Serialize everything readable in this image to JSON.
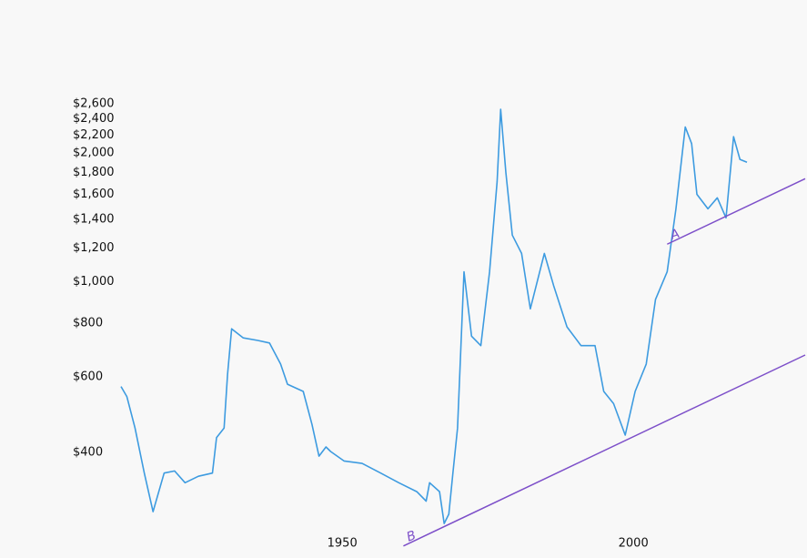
{
  "chart_data": {
    "type": "line",
    "log_scale_y": true,
    "grid": false,
    "x": [
      1912,
      1913,
      1914.4,
      1916,
      1917.5,
      1919.4,
      1921.2,
      1923,
      1925.3,
      1927.7,
      1928.4,
      1929.7,
      1930.3,
      1931,
      1933,
      1935.5,
      1937.5,
      1939.4,
      1940.6,
      1943.3,
      1944.8,
      1946,
      1947.2,
      1948,
      1950.3,
      1953.4,
      1956.6,
      1959.7,
      1962.8,
      1964.4,
      1965,
      1966.7,
      1967.5,
      1968.3,
      1969,
      1969.8,
      1970.9,
      1972.2,
      1973.8,
      1975.3,
      1976.6,
      1977.2,
      1978.1,
      1979.2,
      1980.8,
      1982.3,
      1984.7,
      1986.3,
      1988.6,
      1991,
      1993.4,
      1994.9,
      1996.6,
      1998.6,
      2000.3,
      2002.2,
      2003.8,
      2005.8,
      2007.3,
      2008.9,
      2010,
      2010.9,
      2012.8,
      2014.4,
      2015.9,
      2017.2,
      2018.3,
      2019.5
    ],
    "series": [
      {
        "color": "#3d9be0",
        "values": [
          570,
          540,
          456,
          358,
          291,
          358,
          362,
          340,
          352,
          358,
          433,
          456,
          608,
          777,
          740,
          730,
          720,
          643,
          577,
          555,
          465,
          392,
          412,
          402,
          382,
          377,
          358,
          340,
          324,
          308,
          340,
          324,
          273,
          287,
          358,
          456,
          1055,
          747,
          710,
          1055,
          1713,
          2525,
          1800,
          1285,
          1165,
          865,
          1165,
          980,
          785,
          710,
          710,
          555,
          520,
          439,
          555,
          643,
          910,
          1055,
          1477,
          2297,
          2100,
          1600,
          1480,
          1570,
          1410,
          2180,
          1930,
          1900
        ]
      }
    ],
    "trendlines": [
      {
        "label": "A",
        "color": "#7d4fc9",
        "x": [
          2005.8,
          2029.5
        ],
        "values": [
          1224,
          1740
        ]
      },
      {
        "label": "B",
        "color": "#7d4fc9",
        "x": [
          1960.5,
          2029.5
        ],
        "values": [
          242,
          675
        ]
      }
    ],
    "xlim": [
      1912,
      2029.5
    ],
    "xticks": [
      1950,
      2000
    ],
    "ylim": [
      240,
      2800
    ],
    "yticks": [
      {
        "value": 400,
        "label": "$400"
      },
      {
        "value": 600,
        "label": "$600"
      },
      {
        "value": 800,
        "label": "$800"
      },
      {
        "value": 1000,
        "label": "$1,000"
      },
      {
        "value": 1200,
        "label": "$1,200"
      },
      {
        "value": 1400,
        "label": "$1,400"
      },
      {
        "value": 1600,
        "label": "$1,600"
      },
      {
        "value": 1800,
        "label": "$1,800"
      },
      {
        "value": 2000,
        "label": "$2,000"
      },
      {
        "value": 2200,
        "label": "$2,200"
      },
      {
        "value": 2400,
        "label": "$2,400"
      },
      {
        "value": 2600,
        "label": "$2,600"
      }
    ]
  }
}
